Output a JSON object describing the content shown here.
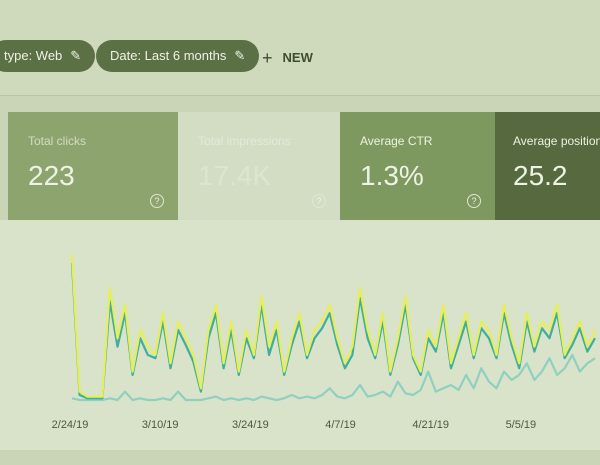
{
  "filters": [
    "type: Web",
    "Date: Last 6 months"
  ],
  "new_button": "NEW",
  "metrics": [
    {
      "label": "Total clicks",
      "value": "223"
    },
    {
      "label": "Total impressions",
      "value": "17.4K"
    },
    {
      "label": "Average CTR",
      "value": "1.3%"
    },
    {
      "label": "Average position",
      "value": "25.2"
    }
  ],
  "chart_data": {
    "type": "line",
    "x_labels": [
      "2/24/19",
      "3/10/19",
      "3/24/19",
      "4/7/19",
      "4/21/19",
      "5/5/19"
    ],
    "ylim": [
      0,
      100
    ],
    "series": [
      {
        "color": "#e6ee5a",
        "values": [
          90,
          8,
          5,
          5,
          5,
          70,
          40,
          60,
          20,
          45,
          35,
          30,
          55,
          25,
          50,
          40,
          30,
          10,
          45,
          60,
          25,
          50,
          20,
          45,
          30,
          65,
          35,
          50,
          20,
          40,
          55,
          30,
          45,
          50,
          60,
          40,
          25,
          35,
          70,
          45,
          30,
          55,
          20,
          40,
          65,
          30,
          20,
          45,
          35,
          60,
          25,
          40,
          55,
          30,
          50,
          45,
          30,
          60,
          40,
          25,
          55,
          35,
          50,
          45,
          60,
          30,
          40,
          50,
          35,
          45
        ]
      },
      {
        "color": "#3fae9e",
        "values": [
          85,
          6,
          4,
          4,
          4,
          62,
          35,
          55,
          18,
          40,
          30,
          28,
          50,
          22,
          45,
          36,
          26,
          8,
          40,
          55,
          22,
          45,
          18,
          40,
          28,
          60,
          30,
          45,
          18,
          36,
          50,
          28,
          40,
          46,
          55,
          36,
          22,
          30,
          64,
          40,
          28,
          50,
          18,
          36,
          60,
          28,
          18,
          40,
          32,
          55,
          22,
          36,
          50,
          28,
          46,
          40,
          28,
          55,
          36,
          22,
          50,
          32,
          46,
          40,
          55,
          28,
          36,
          46,
          32,
          40
        ]
      },
      {
        "color": "#8fd0c0",
        "values": [
          4,
          3,
          3,
          3,
          3,
          4,
          3,
          8,
          3,
          4,
          3,
          3,
          4,
          3,
          8,
          3,
          3,
          3,
          4,
          5,
          3,
          4,
          3,
          4,
          3,
          5,
          4,
          3,
          4,
          6,
          4,
          5,
          4,
          6,
          10,
          5,
          4,
          6,
          12,
          5,
          6,
          8,
          5,
          14,
          7,
          6,
          9,
          20,
          8,
          10,
          12,
          9,
          18,
          10,
          22,
          14,
          10,
          20,
          15,
          18,
          25,
          15,
          20,
          28,
          18,
          22,
          30,
          20,
          25,
          28
        ]
      }
    ]
  }
}
